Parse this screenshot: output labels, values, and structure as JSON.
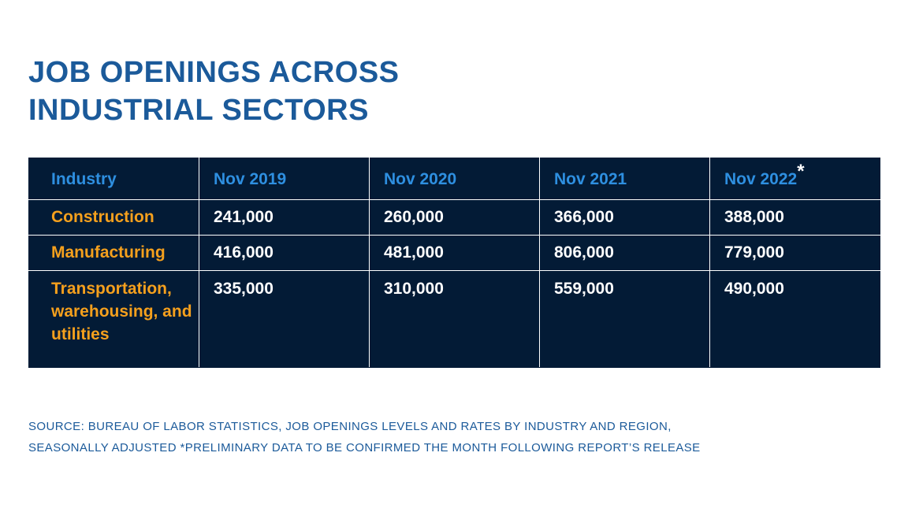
{
  "title": {
    "line1": "JOB OPENINGS ACROSS",
    "line2": "INDUSTRIAL SECTORS"
  },
  "colors": {
    "title": "#1b5a9a",
    "table_bg": "#031b36",
    "header_text": "#2e8fe0",
    "industry_text": "#f5a01d",
    "value_text": "#ffffff"
  },
  "chart_data": {
    "type": "table",
    "title": "JOB OPENINGS ACROSS INDUSTRIAL SECTORS",
    "columns": [
      "Industry",
      "Nov 2019",
      "Nov 2020",
      "Nov 2021",
      "Nov 2022"
    ],
    "footnote_marker": "*",
    "rows": [
      {
        "industry": "Construction",
        "values": [
          "241,000",
          "260,000",
          "366,000",
          "388,000"
        ]
      },
      {
        "industry": "Manufacturing",
        "values": [
          "416,000",
          "481,000",
          "806,000",
          "779,000"
        ]
      },
      {
        "industry": "Transportation, warehousing, and utilities",
        "values": [
          "335,000",
          "310,000",
          "559,000",
          "490,000"
        ]
      }
    ]
  },
  "source": {
    "line1": "SOURCE: BUREAU OF LABOR STATISTICS, JOB OPENINGS LEVELS AND RATES BY INDUSTRY AND REGION,",
    "line2": "SEASONALLY ADJUSTED *PRELIMINARY DATA TO BE CONFIRMED THE MONTH FOLLOWING REPORT’S RELEASE"
  }
}
